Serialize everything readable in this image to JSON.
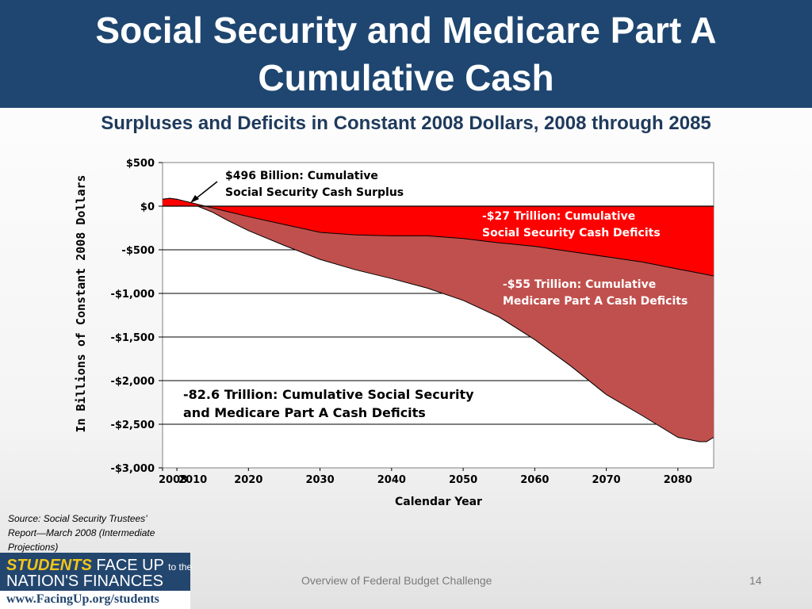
{
  "slide": {
    "title_line1": "Social Security and Medicare Part A",
    "title_line2": "Cumulative Cash",
    "subtitle": "Surpluses and Deficits in Constant 2008 Dollars, 2008 through 2085",
    "source_line1": "Source:  Social Security Trustees’",
    "source_line2": "Report—March 2008 (Intermediate",
    "source_line3": "Projections)",
    "footer": "Overview of Federal Budget Challenge",
    "page_number": "14",
    "logo": {
      "students": "STUDENTS",
      "face_up": "FACE UP",
      "to_the": "to the",
      "nations": "NATION'S FINANCES",
      "url": "www.FacingUp.org/students"
    }
  },
  "chart_data": {
    "type": "area",
    "title": "Surpluses and Deficits in Constant 2008 Dollars, 2008 through 2085",
    "xlabel": "Calendar Year",
    "ylabel": "In Billions of Constant 2008 Dollars",
    "xlim": [
      2008,
      2085
    ],
    "ylim": [
      -3000,
      500
    ],
    "yticks": [
      500,
      0,
      -500,
      -1000,
      -1500,
      -2000,
      -2500,
      -3000
    ],
    "ytick_labels": [
      "$500",
      "$0",
      "-$500",
      "-$1,000",
      "-$1,500",
      "-$2,000",
      "-$2,500",
      "-$3,000"
    ],
    "xtick_labels": [
      "2008",
      "2010",
      "2020",
      "2030",
      "2040",
      "2050",
      "2060",
      "2070",
      "2080"
    ],
    "xticks": [
      2008,
      2010,
      2020,
      2030,
      2040,
      2050,
      2060,
      2070,
      2080
    ],
    "grid": true,
    "colors": {
      "social_security": "#ff0000",
      "medicare": "#c0504d",
      "title_bar": "#1e4670",
      "subtitle": "#1f3a5c",
      "plot_border": "#808080"
    },
    "series": [
      {
        "name": "Social Security Cumulative Cash",
        "x": [
          2008,
          2009,
          2010,
          2012,
          2015,
          2017,
          2020,
          2025,
          2030,
          2035,
          2040,
          2045,
          2050,
          2055,
          2060,
          2065,
          2070,
          2075,
          2080,
          2085
        ],
        "values": [
          80,
          90,
          80,
          40,
          -20,
          -60,
          -120,
          -210,
          -300,
          -330,
          -340,
          -340,
          -370,
          -420,
          -460,
          -520,
          -580,
          -640,
          -720,
          -800
        ]
      },
      {
        "name": "Social Security and Medicare Part A Cumulative Cash",
        "x": [
          2008,
          2009,
          2010,
          2012,
          2015,
          2017,
          2020,
          2025,
          2030,
          2035,
          2040,
          2045,
          2050,
          2055,
          2060,
          2065,
          2070,
          2075,
          2080,
          2083,
          2084,
          2085
        ],
        "values": [
          80,
          90,
          80,
          30,
          -70,
          -160,
          -280,
          -450,
          -610,
          -730,
          -830,
          -940,
          -1080,
          -1270,
          -1530,
          -1830,
          -2160,
          -2400,
          -2650,
          -2700,
          -2700,
          -2650
        ]
      }
    ],
    "annotations": [
      {
        "id": "surplus",
        "line1": "$496 Billion:  Cumulative",
        "line2": "Social Security Cash Surplus"
      },
      {
        "id": "ss_deficit",
        "line1": "-$27 Trillion:  Cumulative",
        "line2": "Social Security Cash Deficits"
      },
      {
        "id": "medicare_deficit",
        "line1": "-$55 Trillion:  Cumulative",
        "line2": "Medicare Part A Cash Deficits"
      },
      {
        "id": "total_deficit",
        "line1": "-82.6 Trillion:  Cumulative Social Security",
        "line2": "and Medicare Part A Cash Deficits"
      }
    ]
  }
}
